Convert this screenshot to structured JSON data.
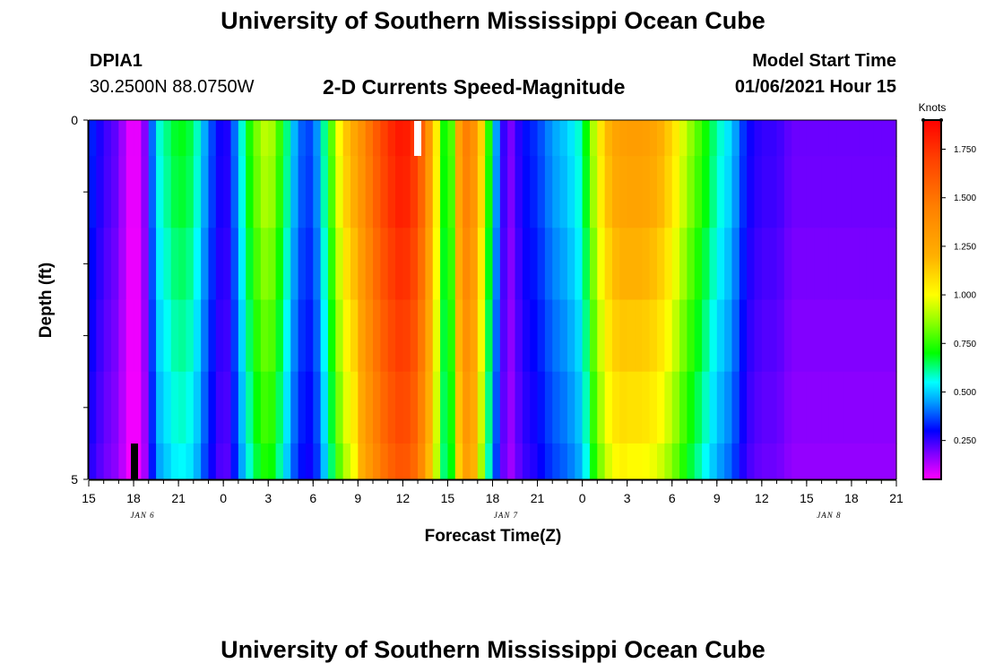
{
  "page_title": "University of Southern Mississippi Ocean Cube",
  "footer_title": "University of Southern Mississippi Ocean Cube",
  "station": {
    "id": "DPIA1",
    "coords": "30.2500N 88.0750W"
  },
  "product_title": "2-D Currents Speed-Magnitude",
  "model": {
    "label": "Model Start Time",
    "value": "01/06/2021 Hour 15"
  },
  "colors": {
    "white_marker": "#ffffff",
    "black_marker": "#000000"
  },
  "chart_data": {
    "type": "heatmap",
    "title": "2-D Currents Speed-Magnitude",
    "xlabel": "Forecast Time(Z)",
    "ylabel": "Depth (ft)",
    "y_tick_labels": [
      "0",
      "5"
    ],
    "ylim": [
      0,
      5
    ],
    "x_tick_labels": [
      "15",
      "18",
      "21",
      "0",
      "3",
      "6",
      "9",
      "12",
      "15",
      "18",
      "21",
      "0",
      "3",
      "6",
      "9",
      "12",
      "15",
      "18",
      "21"
    ],
    "day_labels": [
      {
        "text": "JAN 6",
        "hour_index": 4
      },
      {
        "text": "JAN 7",
        "hour_index": 31
      },
      {
        "text": "JAN 8",
        "hour_index": 55
      }
    ],
    "hours_span": 54,
    "colorbar": {
      "title": "Knots",
      "ticks": [
        "0.250",
        "0.500",
        "0.750",
        "1.000",
        "1.250",
        "1.500",
        "1.750"
      ],
      "tick_values": [
        0.25,
        0.5,
        0.75,
        1.0,
        1.25,
        1.5,
        1.75
      ],
      "range": [
        0.05,
        1.9
      ],
      "stops": [
        {
          "v": 0.05,
          "c": "#ff00ff"
        },
        {
          "v": 0.18,
          "c": "#8000ff"
        },
        {
          "v": 0.3,
          "c": "#0000ff"
        },
        {
          "v": 0.45,
          "c": "#00a0ff"
        },
        {
          "v": 0.55,
          "c": "#00ffff"
        },
        {
          "v": 0.7,
          "c": "#00ff00"
        },
        {
          "v": 0.88,
          "c": "#a0ff00"
        },
        {
          "v": 1.0,
          "c": "#ffff00"
        },
        {
          "v": 1.2,
          "c": "#ffb000"
        },
        {
          "v": 1.45,
          "c": "#ff8000"
        },
        {
          "v": 1.7,
          "c": "#ff4000"
        },
        {
          "v": 1.9,
          "c": "#ff0000"
        }
      ]
    },
    "depth_levels": [
      0.0,
      0.5,
      1.5,
      2.5,
      3.5,
      4.5
    ],
    "speed_profile_hours": [
      0,
      1,
      2,
      2.5,
      3,
      3.5,
      4,
      4.5,
      5,
      6,
      7,
      8,
      9,
      9.5,
      10,
      11,
      12,
      13,
      14,
      15,
      16,
      17,
      18,
      19,
      20,
      21,
      22,
      23,
      24,
      25,
      26,
      27,
      28,
      29,
      30,
      31,
      32,
      33,
      34,
      35,
      36,
      37,
      38,
      39,
      40,
      41,
      42,
      43,
      44,
      45,
      46,
      47,
      48,
      49,
      50,
      51,
      52,
      53,
      54
    ],
    "speed_profile_knots": [
      0.35,
      0.25,
      0.2,
      0.1,
      0.05,
      0.1,
      0.25,
      0.55,
      0.6,
      0.7,
      0.65,
      0.4,
      0.25,
      0.3,
      0.5,
      0.8,
      0.95,
      0.7,
      0.4,
      0.35,
      0.7,
      1.1,
      1.3,
      1.55,
      1.75,
      1.85,
      1.7,
      1.2,
      0.55,
      1.5,
      1.3,
      0.55,
      0.15,
      0.3,
      0.35,
      0.45,
      0.5,
      0.6,
      1.0,
      1.25,
      1.3,
      1.3,
      1.25,
      1.1,
      0.9,
      0.75,
      0.6,
      0.5,
      0.3,
      0.25,
      0.25,
      0.2,
      0.2,
      0.2,
      0.2,
      0.2,
      0.2,
      0.2,
      0.2
    ]
  }
}
